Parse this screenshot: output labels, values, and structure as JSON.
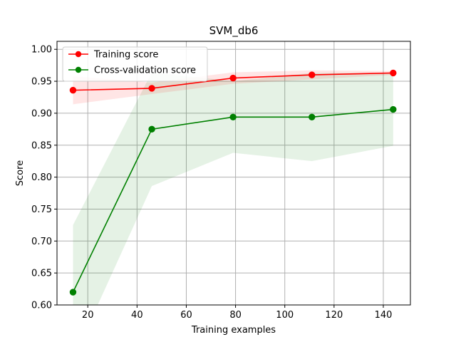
{
  "chart_data": {
    "type": "line",
    "title": "SVM_db6",
    "xlabel": "Training examples",
    "ylabel": "Score",
    "xlim": [
      7.5,
      151
    ],
    "ylim": [
      0.6,
      1.0125
    ],
    "x_ticks": [
      20,
      40,
      60,
      80,
      100,
      120,
      140
    ],
    "y_ticks": [
      0.6,
      0.65,
      0.7,
      0.75,
      0.8,
      0.85,
      0.9,
      0.95,
      1.0
    ],
    "grid": true,
    "legend_position": "top-left",
    "series": [
      {
        "name": "Training score",
        "color": "#ff0000",
        "x": [
          14,
          46,
          79,
          111,
          144
        ],
        "values": [
          0.936,
          0.939,
          0.955,
          0.96,
          0.963
        ],
        "band_lower": [
          0.914,
          0.93,
          0.946,
          0.953,
          0.96
        ],
        "band_upper": [
          0.958,
          0.948,
          0.964,
          0.967,
          0.966
        ]
      },
      {
        "name": "Cross-validation score",
        "color": "#008000",
        "x": [
          14,
          46,
          79,
          111,
          144
        ],
        "values": [
          0.62,
          0.875,
          0.894,
          0.894,
          0.906
        ],
        "band_lower": [
          0.515,
          0.786,
          0.838,
          0.825,
          0.849
        ],
        "band_upper": [
          0.725,
          0.964,
          0.95,
          0.963,
          0.963
        ]
      }
    ]
  }
}
